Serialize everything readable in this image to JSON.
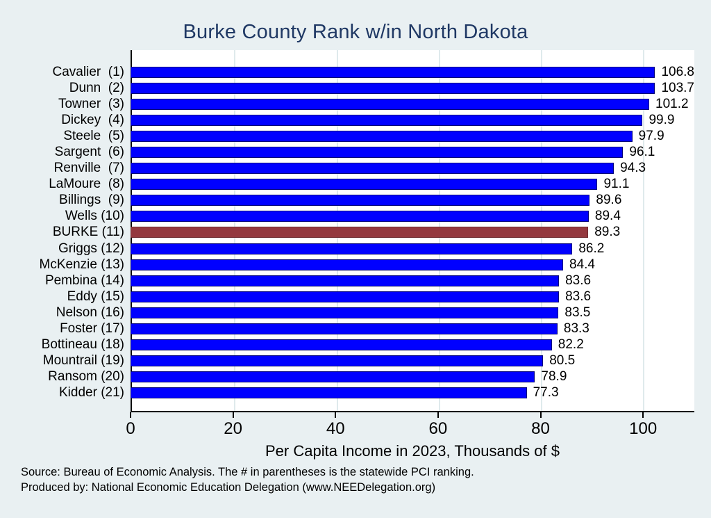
{
  "page": {
    "background": "#e9f0f2"
  },
  "chart_data": {
    "type": "bar",
    "orientation": "horizontal",
    "title": "Burke County Rank w/in North Dakota",
    "xlabel": "Per Capita Income in 2023, Thousands of $",
    "xlim": [
      0,
      110
    ],
    "xticks": [
      0,
      20,
      40,
      60,
      80,
      100
    ],
    "grid": true,
    "legend": "none",
    "categories": [
      "Cavalier  (1)",
      "Dunn  (2)",
      "Towner  (3)",
      "Dickey  (4)",
      "Steele  (5)",
      "Sargent  (6)",
      "Renville  (7)",
      "LaMoure  (8)",
      "Billings  (9)",
      "Wells (10)",
      "BURKE (11)",
      "Griggs (12)",
      "McKenzie (13)",
      "Pembina (14)",
      "Eddy (15)",
      "Nelson (16)",
      "Foster (17)",
      "Bottineau (18)",
      "Mountrail (19)",
      "Ransom (20)",
      "Kidder (21)"
    ],
    "values": [
      106.8,
      103.7,
      101.2,
      99.9,
      97.9,
      96.1,
      94.3,
      91.1,
      89.6,
      89.4,
      89.3,
      86.2,
      84.4,
      83.6,
      83.6,
      83.5,
      83.3,
      82.2,
      80.5,
      78.9,
      77.3
    ],
    "highlight_index": 10,
    "highlight_category": "BURKE (11)",
    "colors": {
      "bar_fill": "#0000ff",
      "bar_border": "#00007a",
      "highlight_fill": "#94393f",
      "highlight_border": "#6e2b30",
      "title_text": "#1f3864",
      "grid_line": "#dfeaec",
      "axis_line": "#000000",
      "plot_background": "#ffffff",
      "page_background": "#e9f0f2"
    }
  },
  "footer": {
    "line1": "Source: Bureau of Economic Analysis. The # in parentheses is the statewide PCI ranking.",
    "line2": "Produced by: National Economic Education Delegation (www.NEEDelegation.org)"
  }
}
